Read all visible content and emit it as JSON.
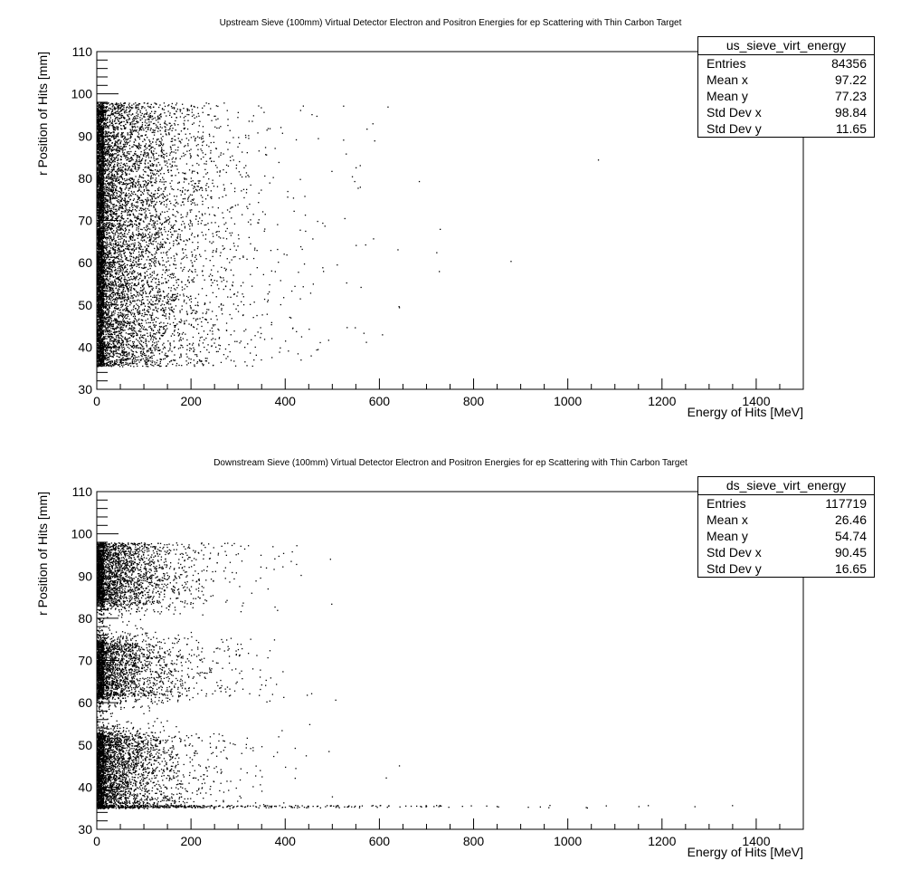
{
  "chart_data": [
    {
      "type": "scatter",
      "title": "Upstream Sieve (100mm) Virtual Detector Electron and Positron Energies for ep Scattering with Thin Carbon Target",
      "xlabel": "Energy of Hits [MeV]",
      "ylabel": "r Position of Hits [mm]",
      "xlim": [
        0,
        1500
      ],
      "ylim": [
        30,
        110
      ],
      "x_ticks": [
        0,
        200,
        400,
        600,
        800,
        1000,
        1200,
        1400
      ],
      "y_ticks": [
        30,
        40,
        50,
        60,
        70,
        80,
        90,
        100,
        110
      ],
      "point_color": "#000000",
      "stats": {
        "name": "us_sieve_virt_energy",
        "rows": [
          {
            "label": "Entries",
            "value": "84356"
          },
          {
            "label": "Mean x",
            "value": "97.22"
          },
          {
            "label": "Mean y",
            "value": "77.23"
          },
          {
            "label": "Std Dev x",
            "value": "98.84"
          },
          {
            "label": "Std Dev y",
            "value": "11.65"
          }
        ]
      },
      "distribution": {
        "r_range": [
          35.5,
          98
        ],
        "energy_falloff_mev": 90,
        "bands": [
          [
            35.5,
            98,
            1.0
          ]
        ],
        "edge_line_r": null
      }
    },
    {
      "type": "scatter",
      "title": "Downstream Sieve (100mm) Virtual Detector Electron and Positron Energies for ep Scattering with Thin Carbon Target",
      "xlabel": "Energy of Hits [MeV]",
      "ylabel": "r Position of Hits [mm]",
      "xlim": [
        0,
        1500
      ],
      "ylim": [
        30,
        110
      ],
      "x_ticks": [
        0,
        200,
        400,
        600,
        800,
        1000,
        1200,
        1400
      ],
      "y_ticks": [
        30,
        40,
        50,
        60,
        70,
        80,
        90,
        100,
        110
      ],
      "point_color": "#000000",
      "stats": {
        "name": "ds_sieve_virt_energy",
        "rows": [
          {
            "label": "Entries",
            "value": "117719"
          },
          {
            "label": "Mean x",
            "value": "26.46"
          },
          {
            "label": "Mean y",
            "value": "54.74"
          },
          {
            "label": "Std Dev x",
            "value": "90.45"
          },
          {
            "label": "Std Dev y",
            "value": "16.65"
          }
        ]
      },
      "distribution": {
        "r_range": [
          35,
          98
        ],
        "energy_falloff_mev": 70,
        "bands": [
          [
            84,
            98,
            1.0
          ],
          [
            62,
            74,
            1.0
          ],
          [
            36,
            52,
            1.0
          ]
        ],
        "edge_line_r": 35.5
      }
    }
  ]
}
